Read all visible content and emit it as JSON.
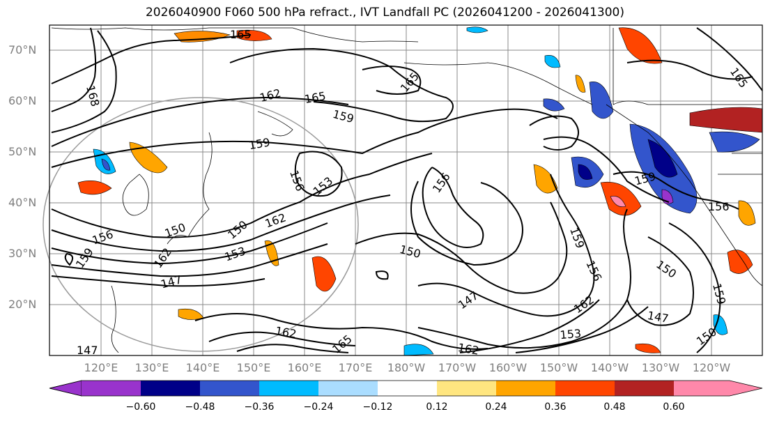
{
  "title": "2026040900 F060 500 hPa refract., IVT Landfall PC (2026041200 - 2026041300)",
  "axes": {
    "lat_labels": [
      "70°N",
      "60°N",
      "50°N",
      "40°N",
      "30°N",
      "20°N"
    ],
    "lon_labels": [
      "120°E",
      "130°E",
      "140°E",
      "150°E",
      "160°E",
      "170°E",
      "180°W",
      "170°W",
      "160°W",
      "150°W",
      "140°W",
      "130°W",
      "120°W"
    ]
  },
  "contour_labels": [
    "165",
    "168",
    "162",
    "165",
    "159",
    "159",
    "156",
    "153",
    "165",
    "156",
    "150",
    "162",
    "159",
    "156",
    "162",
    "150",
    "153",
    "147",
    "150",
    "147",
    "162",
    "153",
    "162",
    "165",
    "162",
    "159",
    "150",
    "147",
    "159",
    "150",
    "165",
    "159",
    "156",
    "156",
    "147"
  ],
  "colorbar": {
    "colors": [
      "#9933cc",
      "#000088",
      "#3355cc",
      "#00bbff",
      "#aaddff",
      "#ffffff",
      "#ffe680",
      "#ffa500",
      "#ff4500",
      "#b22222",
      "#ff88aa"
    ],
    "tick_labels": [
      "−0.60",
      "−0.48",
      "−0.36",
      "−0.24",
      "−0.12",
      "0.12",
      "0.24",
      "0.36",
      "0.48",
      "0.60"
    ]
  },
  "colors": {
    "contour": "#000000",
    "grid": "#888888",
    "coast": "#000000"
  }
}
